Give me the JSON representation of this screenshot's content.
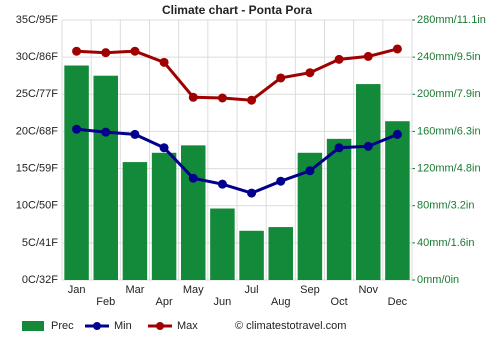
{
  "chart_data": {
    "type": "bar-line",
    "title": "Climate chart - Ponta Pora",
    "categories": [
      "Jan",
      "Feb",
      "Mar",
      "Apr",
      "May",
      "Jun",
      "Jul",
      "Aug",
      "Sep",
      "Oct",
      "Nov",
      "Dec"
    ],
    "series": [
      {
        "name": "Prec",
        "color": "#138a3a",
        "kind": "bar",
        "axis": "y2",
        "values": [
          231,
          220,
          127,
          137,
          145,
          77,
          53,
          57,
          137,
          152,
          211,
          171
        ]
      },
      {
        "name": "Min",
        "color": "#00008b",
        "kind": "line",
        "values": [
          20.3,
          19.9,
          19.6,
          17.8,
          13.7,
          12.9,
          11.7,
          13.3,
          14.7,
          17.8,
          18.0,
          19.6
        ]
      },
      {
        "name": "Max",
        "color": "#a00000",
        "kind": "line",
        "values": [
          30.8,
          30.6,
          30.8,
          29.3,
          24.6,
          24.5,
          24.2,
          27.2,
          27.9,
          29.7,
          30.1,
          31.1
        ]
      }
    ],
    "ylim": [
      0,
      35
    ],
    "yticks": [
      {
        "value": 0,
        "label": "0C/32F"
      },
      {
        "value": 5,
        "label": "5C/41F"
      },
      {
        "value": 10,
        "label": "10C/50F"
      },
      {
        "value": 15,
        "label": "15C/59F"
      },
      {
        "value": 20,
        "label": "20C/68F"
      },
      {
        "value": 25,
        "label": "25C/77F"
      },
      {
        "value": 30,
        "label": "30C/86F"
      },
      {
        "value": 35,
        "label": "35C/95F"
      }
    ],
    "y2lim": [
      0,
      280
    ],
    "y2ticks": [
      {
        "value": 0,
        "label": "0mm/0in"
      },
      {
        "value": 40,
        "label": "40mm/1.6in"
      },
      {
        "value": 80,
        "label": "80mm/3.2in"
      },
      {
        "value": 120,
        "label": "120mm/4.8in"
      },
      {
        "value": 160,
        "label": "160mm/6.3in"
      },
      {
        "value": 200,
        "label": "200mm/7.9in"
      },
      {
        "value": 240,
        "label": "240mm/9.5in"
      },
      {
        "value": 280,
        "label": "280mm/11.1in"
      }
    ],
    "grid": true,
    "source": "© climatestotravel.com"
  }
}
